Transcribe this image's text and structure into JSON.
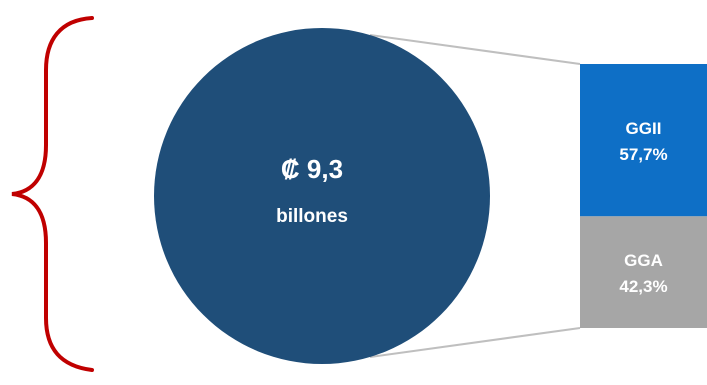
{
  "chart_data": {
    "type": "bar-of-pie",
    "title": "",
    "total": {
      "amount": "₡ 9,3",
      "unit": "billones"
    },
    "breakdown": {
      "categories": [
        "GGII",
        "GGA"
      ],
      "values": [
        57.7,
        42.3
      ],
      "value_labels": [
        "57,7%",
        "42,3%"
      ],
      "colors": [
        "#0e6fc6",
        "#a6a6a6"
      ]
    },
    "pie_color": "#1f4e79",
    "brace_color": "#c00000",
    "connector_color": "#bfbfbf"
  }
}
